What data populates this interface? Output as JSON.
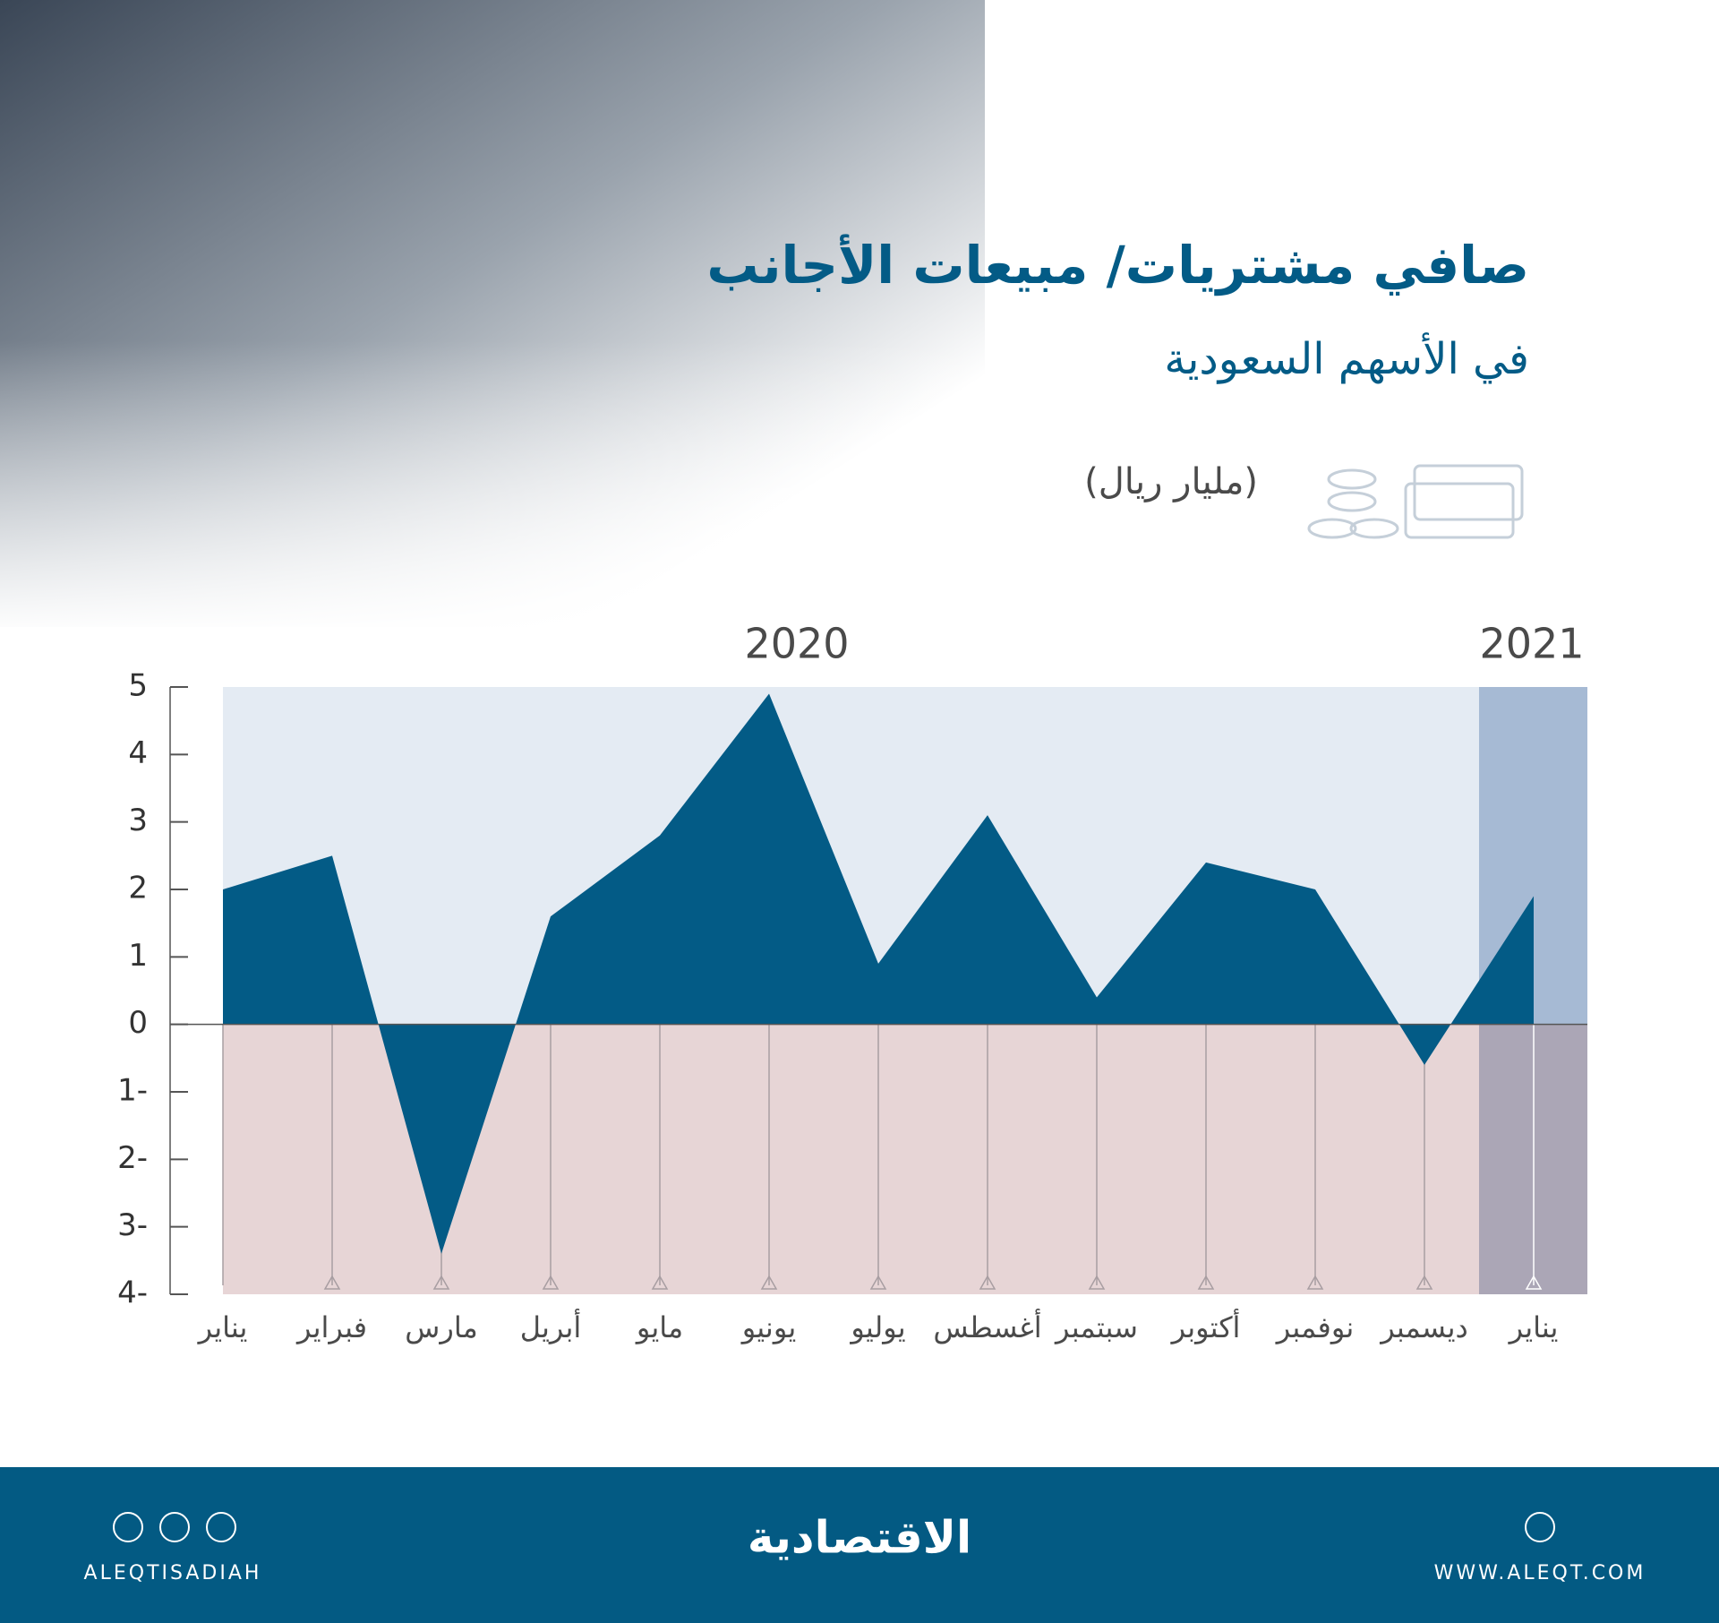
{
  "chart_data": {
    "type": "area",
    "title": "صافي مشتريات/ مبيعات الأجانب",
    "subtitle": "في الأسهم السعودية",
    "unit": "(مليار ريال)",
    "year_labels": [
      "2020",
      "2021"
    ],
    "categories": [
      "يناير",
      "فبراير",
      "مارس",
      "أبريل",
      "مايو",
      "يونيو",
      "يوليو",
      "أغسطس",
      "سبتمبر",
      "أكتوبر",
      "نوفمبر",
      "ديسمبر",
      "يناير"
    ],
    "values": [
      2.0,
      2.5,
      -3.4,
      1.6,
      2.8,
      4.9,
      0.9,
      3.1,
      0.4,
      2.4,
      2.0,
      -0.6,
      1.9
    ],
    "color": "#035b86",
    "ylim": [
      -4,
      5
    ],
    "yticks": [
      {
        "value": -4,
        "label": "4-"
      },
      {
        "value": -3,
        "label": "3-"
      },
      {
        "value": -2,
        "label": "2-"
      },
      {
        "value": -1,
        "label": "1-"
      },
      0,
      1,
      2,
      3,
      4,
      5
    ]
  },
  "footer": {
    "logo": "الاقتصادية",
    "social": "ALEQTISADIAH",
    "website": "WWW.ALEQT.COM"
  }
}
